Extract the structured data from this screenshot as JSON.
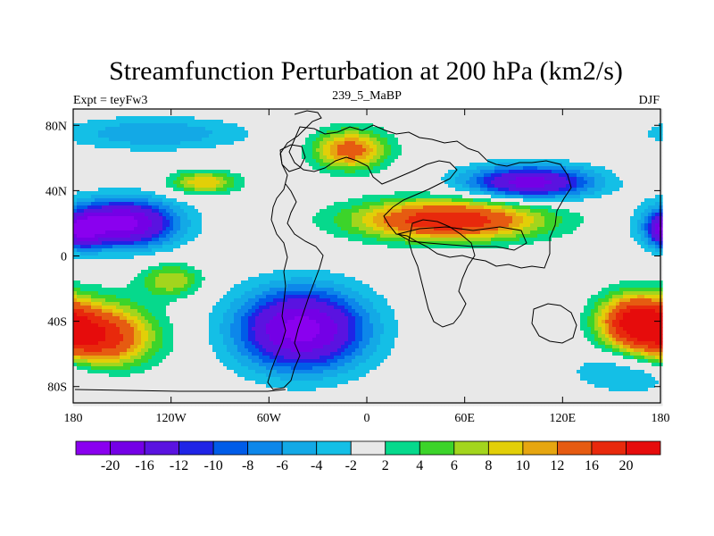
{
  "chart_data": {
    "type": "heatmap",
    "title": "Streamfunction Perturbation at 200 hPa (km2/s)",
    "left_label": "Expt = teyFw3",
    "center_label": "239_5_MaBP",
    "right_label": "DJF",
    "x_ticks": [
      "180",
      "120W",
      "60W",
      "0",
      "60E",
      "120E",
      "180"
    ],
    "y_ticks": [
      "80N",
      "40N",
      "0",
      "40S",
      "80S"
    ],
    "xlim": [
      -180,
      180
    ],
    "ylim": [
      -90,
      90
    ],
    "x_tick_values": [
      -180,
      -120,
      -60,
      0,
      60,
      120,
      180
    ],
    "y_tick_values": [
      80,
      40,
      0,
      -40,
      -80
    ],
    "colorbar": {
      "levels": [
        "-20",
        "-16",
        "-12",
        "-10",
        "-8",
        "-6",
        "-4",
        "-2",
        "2",
        "4",
        "6",
        "8",
        "10",
        "12",
        "16",
        "20"
      ],
      "colors": [
        "#8a00ef",
        "#7400e6",
        "#5a13e0",
        "#1f24e6",
        "#005ce8",
        "#0d87ea",
        "#13a9e6",
        "#14bfe6",
        "#e8e8e8",
        "#06d98c",
        "#3cd42a",
        "#a3d51d",
        "#e2cf08",
        "#e6a610",
        "#e65b11",
        "#e8290c",
        "#e60c0c"
      ]
    },
    "field": [
      {
        "lon": -150,
        "lat": 20,
        "value": -22,
        "sx": 32,
        "sy": 14
      },
      {
        "lon": -40,
        "lat": -45,
        "value": -22,
        "sx": 38,
        "sy": 24
      },
      {
        "lon": 100,
        "lat": 45,
        "value": -18,
        "sx": 38,
        "sy": 10
      },
      {
        "lon": 185,
        "lat": 15,
        "value": -14,
        "sx": 12,
        "sy": 10
      },
      {
        "lon": -130,
        "lat": 75,
        "value": -6,
        "sx": 55,
        "sy": 10
      },
      {
        "lon": 170,
        "lat": -70,
        "value": -6,
        "sx": 40,
        "sy": 14
      },
      {
        "lon": 50,
        "lat": 22,
        "value": 20,
        "sx": 55,
        "sy": 12
      },
      {
        "lon": -10,
        "lat": 65,
        "value": 14,
        "sx": 22,
        "sy": 12
      },
      {
        "lon": -165,
        "lat": -50,
        "value": 20,
        "sx": 32,
        "sy": 20
      },
      {
        "lon": 165,
        "lat": -40,
        "value": 20,
        "sx": 22,
        "sy": 16
      },
      {
        "lon": -100,
        "lat": 45,
        "value": 10,
        "sx": 20,
        "sy": 7
      },
      {
        "lon": -120,
        "lat": -15,
        "value": 8,
        "sx": 18,
        "sy": 10
      }
    ]
  }
}
